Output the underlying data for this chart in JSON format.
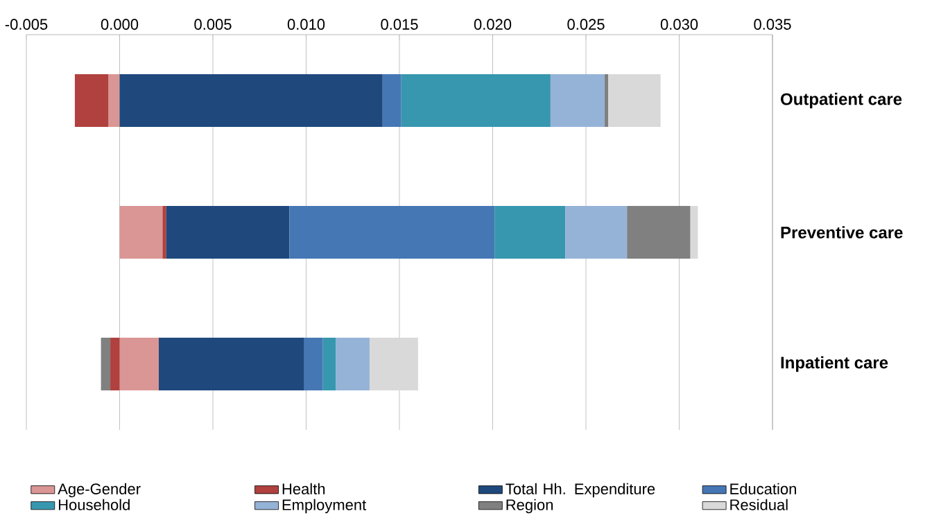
{
  "chart_data": {
    "type": "bar",
    "orientation": "horizontal",
    "stacked": true,
    "categories": [
      "Outpatient care",
      "Preventive care",
      "Inpatient care"
    ],
    "series": [
      {
        "name": "Age-Gender",
        "color": "#da9694",
        "values": [
          -0.0006,
          0.0023,
          0.0021
        ]
      },
      {
        "name": "Health",
        "color": "#b0413e",
        "values": [
          -0.0018,
          0.0002,
          -0.0005
        ]
      },
      {
        "name": "Total Hh. Expenditure",
        "color": "#1f497d",
        "values": [
          0.0141,
          0.0066,
          0.0078
        ]
      },
      {
        "name": "Education",
        "color": "#4677b5",
        "values": [
          0.001,
          0.011,
          0.001
        ]
      },
      {
        "name": "Household",
        "color": "#3797af",
        "values": [
          0.008,
          0.0038,
          0.0007
        ]
      },
      {
        "name": "Employment",
        "color": "#95b3d7",
        "values": [
          0.0029,
          0.0033,
          0.0018
        ]
      },
      {
        "name": "Region",
        "color": "#808080",
        "values": [
          0.0002,
          0.0034,
          -0.0005
        ]
      },
      {
        "name": "Residual",
        "color": "#d9d9d9",
        "values": [
          0.0028,
          0.0004,
          0.0026
        ]
      }
    ],
    "xlim": [
      -0.005,
      0.035
    ],
    "xticks": [
      {
        "value": -0.005,
        "label": "-0.005"
      },
      {
        "value": 0,
        "label": "0.000"
      },
      {
        "value": 0.005,
        "label": "0.005"
      },
      {
        "value": 0.01,
        "label": "0.010"
      },
      {
        "value": 0.015,
        "label": "0.015"
      },
      {
        "value": 0.02,
        "label": "0.020"
      },
      {
        "value": 0.025,
        "label": "0.025"
      },
      {
        "value": 0.03,
        "label": "0.030"
      },
      {
        "value": 0.035,
        "label": "0.035"
      }
    ],
    "grid": "x",
    "legend": "bottom"
  }
}
